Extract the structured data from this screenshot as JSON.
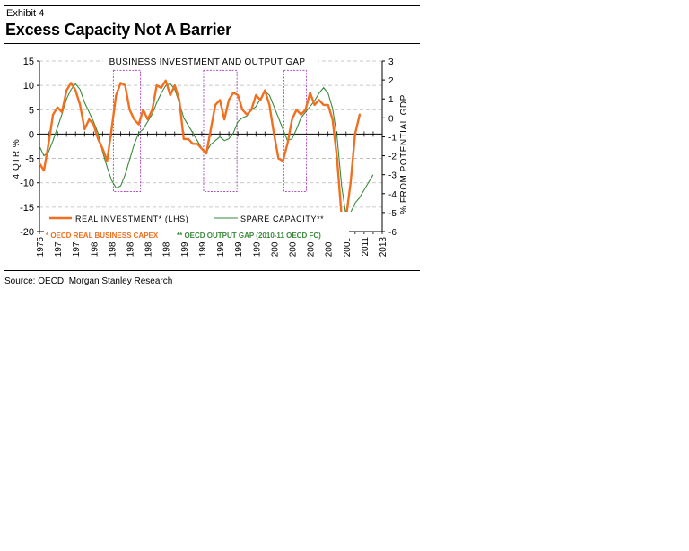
{
  "exhibit_label": "Exhibit 4",
  "title": "Excess Capacity Not A Barrier",
  "source": "Source: OECD, Morgan Stanley Research",
  "colors": {
    "investment": "#f07020",
    "capacity": "#3a8a3a",
    "box": "#b050c0",
    "note_left": "#f07020",
    "note_right": "#3a8a3a"
  },
  "chart_data": {
    "type": "line",
    "title": "BUSINESS INVESTMENT AND OUTPUT GAP",
    "ylabel_left": "4 QTR %",
    "ylabel_right": "% FROM POTENTIAL GDP",
    "ylim_left": [
      -20,
      15
    ],
    "ylim_right": [
      -6,
      3
    ],
    "yticks_left": [
      "15",
      "10",
      "5",
      "0",
      "-5",
      "-10",
      "-15",
      "-20"
    ],
    "yticks_right": [
      "3",
      "2",
      "1",
      "0",
      "-1",
      "-2",
      "-3",
      "-4",
      "-5",
      "-6"
    ],
    "xlim": [
      1975,
      2013
    ],
    "xticks": [
      "1975",
      "1977",
      "1979",
      "1981",
      "1983",
      "1985",
      "1987",
      "1989",
      "1991",
      "1993",
      "1995",
      "1997",
      "1999",
      "2001",
      "2003",
      "2005",
      "2007",
      "2009",
      "2011",
      "2013"
    ],
    "highlight_periods": [
      [
        1983.2,
        1986.2
      ],
      [
        1993.2,
        1996.9
      ],
      [
        2002.1,
        2004.6
      ]
    ],
    "legend": [
      "REAL INVESTMENT* (LHS)",
      "SPARE CAPACITY**"
    ],
    "notes": [
      "* OECD REAL BUSINESS CAPEX",
      "** OECD OUTPUT GAP (2010-11 OECD FC)"
    ],
    "series": [
      {
        "name": "REAL INVESTMENT* (LHS)",
        "axis": "left",
        "x": [
          1975.0,
          1975.5,
          1976.0,
          1976.5,
          1977.0,
          1977.5,
          1978.0,
          1978.5,
          1979.0,
          1979.5,
          1980.0,
          1980.5,
          1981.0,
          1981.5,
          1982.0,
          1982.5,
          1983.0,
          1983.5,
          1984.0,
          1984.5,
          1985.0,
          1985.5,
          1986.0,
          1986.5,
          1987.0,
          1987.5,
          1988.0,
          1988.5,
          1989.0,
          1989.5,
          1990.0,
          1990.5,
          1991.0,
          1991.5,
          1992.0,
          1992.5,
          1993.0,
          1993.5,
          1994.0,
          1994.5,
          1995.0,
          1995.5,
          1996.0,
          1996.5,
          1997.0,
          1997.5,
          1998.0,
          1998.5,
          1999.0,
          1999.5,
          2000.0,
          2000.5,
          2001.0,
          2001.5,
          2002.0,
          2002.5,
          2003.0,
          2003.5,
          2004.0,
          2004.5,
          2005.0,
          2005.5,
          2006.0,
          2006.5,
          2007.0,
          2007.5,
          2008.0,
          2008.5,
          2009.0,
          2009.5,
          2010.0,
          2010.5
        ],
        "values": [
          -6,
          -7.5,
          -2,
          4,
          5.5,
          4.5,
          9,
          10.5,
          9,
          6,
          1,
          3,
          2,
          -1,
          -3,
          -5.5,
          1,
          8,
          10.5,
          10,
          5,
          3,
          2,
          5,
          3,
          5,
          10,
          9.5,
          11,
          8,
          10,
          7,
          -1,
          -1,
          -2,
          -2,
          -3,
          -4,
          1,
          6,
          7,
          3,
          7,
          8.5,
          8,
          5,
          4,
          5,
          8,
          7,
          9,
          6,
          0,
          -5,
          -5.5,
          -2,
          3,
          5,
          4,
          5,
          8.5,
          6,
          7,
          6,
          6,
          3,
          -5,
          -17,
          -17,
          -10,
          0,
          4
        ]
      },
      {
        "name": "SPARE CAPACITY**",
        "axis": "right",
        "x": [
          1975.0,
          1975.5,
          1976.0,
          1976.5,
          1977.0,
          1977.5,
          1978.0,
          1978.5,
          1979.0,
          1979.5,
          1980.0,
          1980.5,
          1981.0,
          1981.5,
          1982.0,
          1982.5,
          1983.0,
          1983.5,
          1984.0,
          1984.5,
          1985.0,
          1985.5,
          1986.0,
          1986.5,
          1987.0,
          1987.5,
          1988.0,
          1988.5,
          1989.0,
          1989.5,
          1990.0,
          1990.5,
          1991.0,
          1991.5,
          1992.0,
          1992.5,
          1993.0,
          1993.5,
          1994.0,
          1994.5,
          1995.0,
          1995.5,
          1996.0,
          1996.5,
          1997.0,
          1997.5,
          1998.0,
          1998.5,
          1999.0,
          1999.5,
          2000.0,
          2000.5,
          2001.0,
          2001.5,
          2002.0,
          2002.5,
          2003.0,
          2003.5,
          2004.0,
          2004.5,
          2005.0,
          2005.5,
          2006.0,
          2006.5,
          2007.0,
          2007.5,
          2008.0,
          2008.5,
          2009.0,
          2009.5,
          2010.0,
          2010.5,
          2011.0,
          2011.5,
          2012.0
        ],
        "values": [
          -1.5,
          -2.0,
          -1.8,
          -1.2,
          -0.5,
          0.2,
          1.0,
          1.5,
          1.8,
          1.5,
          0.8,
          0.3,
          -0.2,
          -0.8,
          -1.8,
          -2.6,
          -3.3,
          -3.7,
          -3.6,
          -3.0,
          -2.2,
          -1.4,
          -0.8,
          -0.6,
          -0.2,
          0.2,
          0.8,
          1.3,
          1.7,
          1.8,
          1.5,
          0.8,
          0.0,
          -0.4,
          -0.8,
          -1.2,
          -1.6,
          -1.8,
          -1.4,
          -1.2,
          -1.0,
          -1.2,
          -1.1,
          -0.8,
          -0.2,
          0.0,
          0.1,
          0.4,
          0.6,
          1.0,
          1.4,
          1.2,
          0.6,
          0.0,
          -0.6,
          -1.2,
          -1.1,
          -0.6,
          0.0,
          0.3,
          0.6,
          0.9,
          1.3,
          1.6,
          1.3,
          0.5,
          -1.0,
          -3.6,
          -5.2,
          -5.0,
          -4.5,
          -4.2,
          -3.8,
          -3.4,
          -3.0
        ]
      }
    ]
  }
}
